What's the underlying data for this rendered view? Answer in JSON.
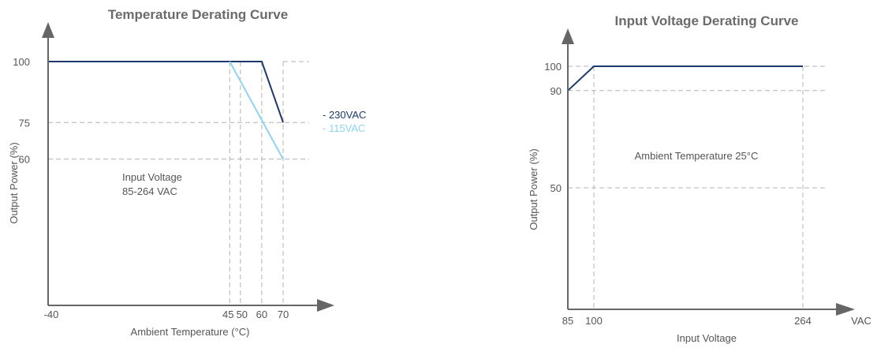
{
  "chart_data": [
    {
      "type": "line",
      "title": "Temperature Derating Curve",
      "xlabel": "Ambient Temperature (°C)",
      "ylabel": "Output Power (%)",
      "xlim": [
        -40,
        70
      ],
      "ylim": [
        0,
        100
      ],
      "x_ticks": [
        "-40",
        "45",
        "50",
        "60",
        "70"
      ],
      "y_ticks": [
        "100",
        "75",
        "60"
      ],
      "note_lines": [
        "Input Voltage",
        "85-264 VAC"
      ],
      "grid": "dashed reference lines at marked ticks",
      "legend_placement": "right",
      "series": [
        {
          "name": "230VAC",
          "legend_label": "- 230VAC",
          "color": "#1b3a6b",
          "x": [
            -40,
            60,
            70
          ],
          "y": [
            100,
            100,
            75
          ]
        },
        {
          "name": "115VAC",
          "legend_label": "- 115VAC",
          "color": "#8fd3f4",
          "x": [
            45,
            70
          ],
          "y": [
            100,
            60
          ]
        }
      ]
    },
    {
      "type": "line",
      "title": "Input Voltage Derating Curve",
      "xlabel": "Input Voltage",
      "x_unit_label": "VAC",
      "ylabel": "Output Power (%)",
      "xlim": [
        85,
        264
      ],
      "ylim": [
        0,
        100
      ],
      "x_ticks": [
        "85",
        "100",
        "264"
      ],
      "y_ticks": [
        "100",
        "90",
        "50"
      ],
      "note_lines": [
        "Ambient Temperature 25°C"
      ],
      "grid": "dashed reference lines at marked ticks",
      "series": [
        {
          "color": "#1b3a6b",
          "x": [
            85,
            100,
            264
          ],
          "y": [
            90,
            100,
            100
          ]
        }
      ]
    }
  ]
}
